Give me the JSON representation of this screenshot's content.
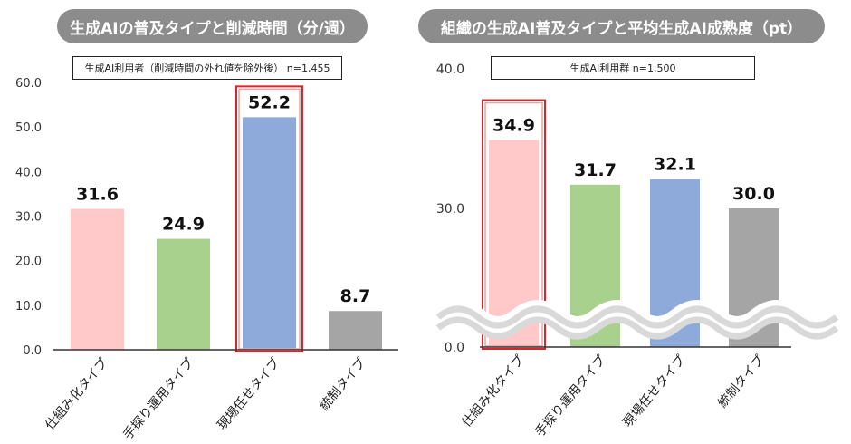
{
  "colors": {
    "pink": "#ffc9c9",
    "green": "#a9d18e",
    "blue": "#8eaadb",
    "gray": "#a5a5a5",
    "highlight": "#d9262c",
    "pill": "#8c8c8c"
  },
  "chart_data": [
    {
      "type": "bar",
      "title": "生成AIの普及タイプと削減時間（分/週）",
      "note": "生成AI利用者（削減時間の外れ値を除外後） n=1,455",
      "categories": [
        "仕組み化タイプ",
        "手探り運用タイプ",
        "現場任せタイプ",
        "統制タイプ"
      ],
      "values": [
        31.6,
        24.9,
        52.2,
        8.7
      ],
      "value_labels": [
        "31.6",
        "24.9",
        "52.2",
        "8.7"
      ],
      "yticks": [
        "0.0",
        "10.0",
        "20.0",
        "30.0",
        "40.0",
        "50.0",
        "60.0"
      ],
      "ylim": [
        0,
        60
      ],
      "highlighted": "現場任せタイプ",
      "grid": false
    },
    {
      "type": "bar",
      "title": "組織の生成AI普及タイプと平均生成AI成熟度（pt）",
      "note": "生成AI利用群 n=1,500",
      "categories": [
        "仕組み化タイプ",
        "手探り運用タイプ",
        "現場任せタイプ",
        "統制タイプ"
      ],
      "values": [
        34.9,
        31.7,
        32.1,
        30.0
      ],
      "value_labels": [
        "34.9",
        "31.7",
        "32.1",
        "30.0"
      ],
      "yticks": [
        "0.0",
        "30.0",
        "40.0"
      ],
      "ylim": [
        0,
        40
      ],
      "axis_break": true,
      "highlighted": "仕組み化タイプ",
      "grid": false
    }
  ]
}
